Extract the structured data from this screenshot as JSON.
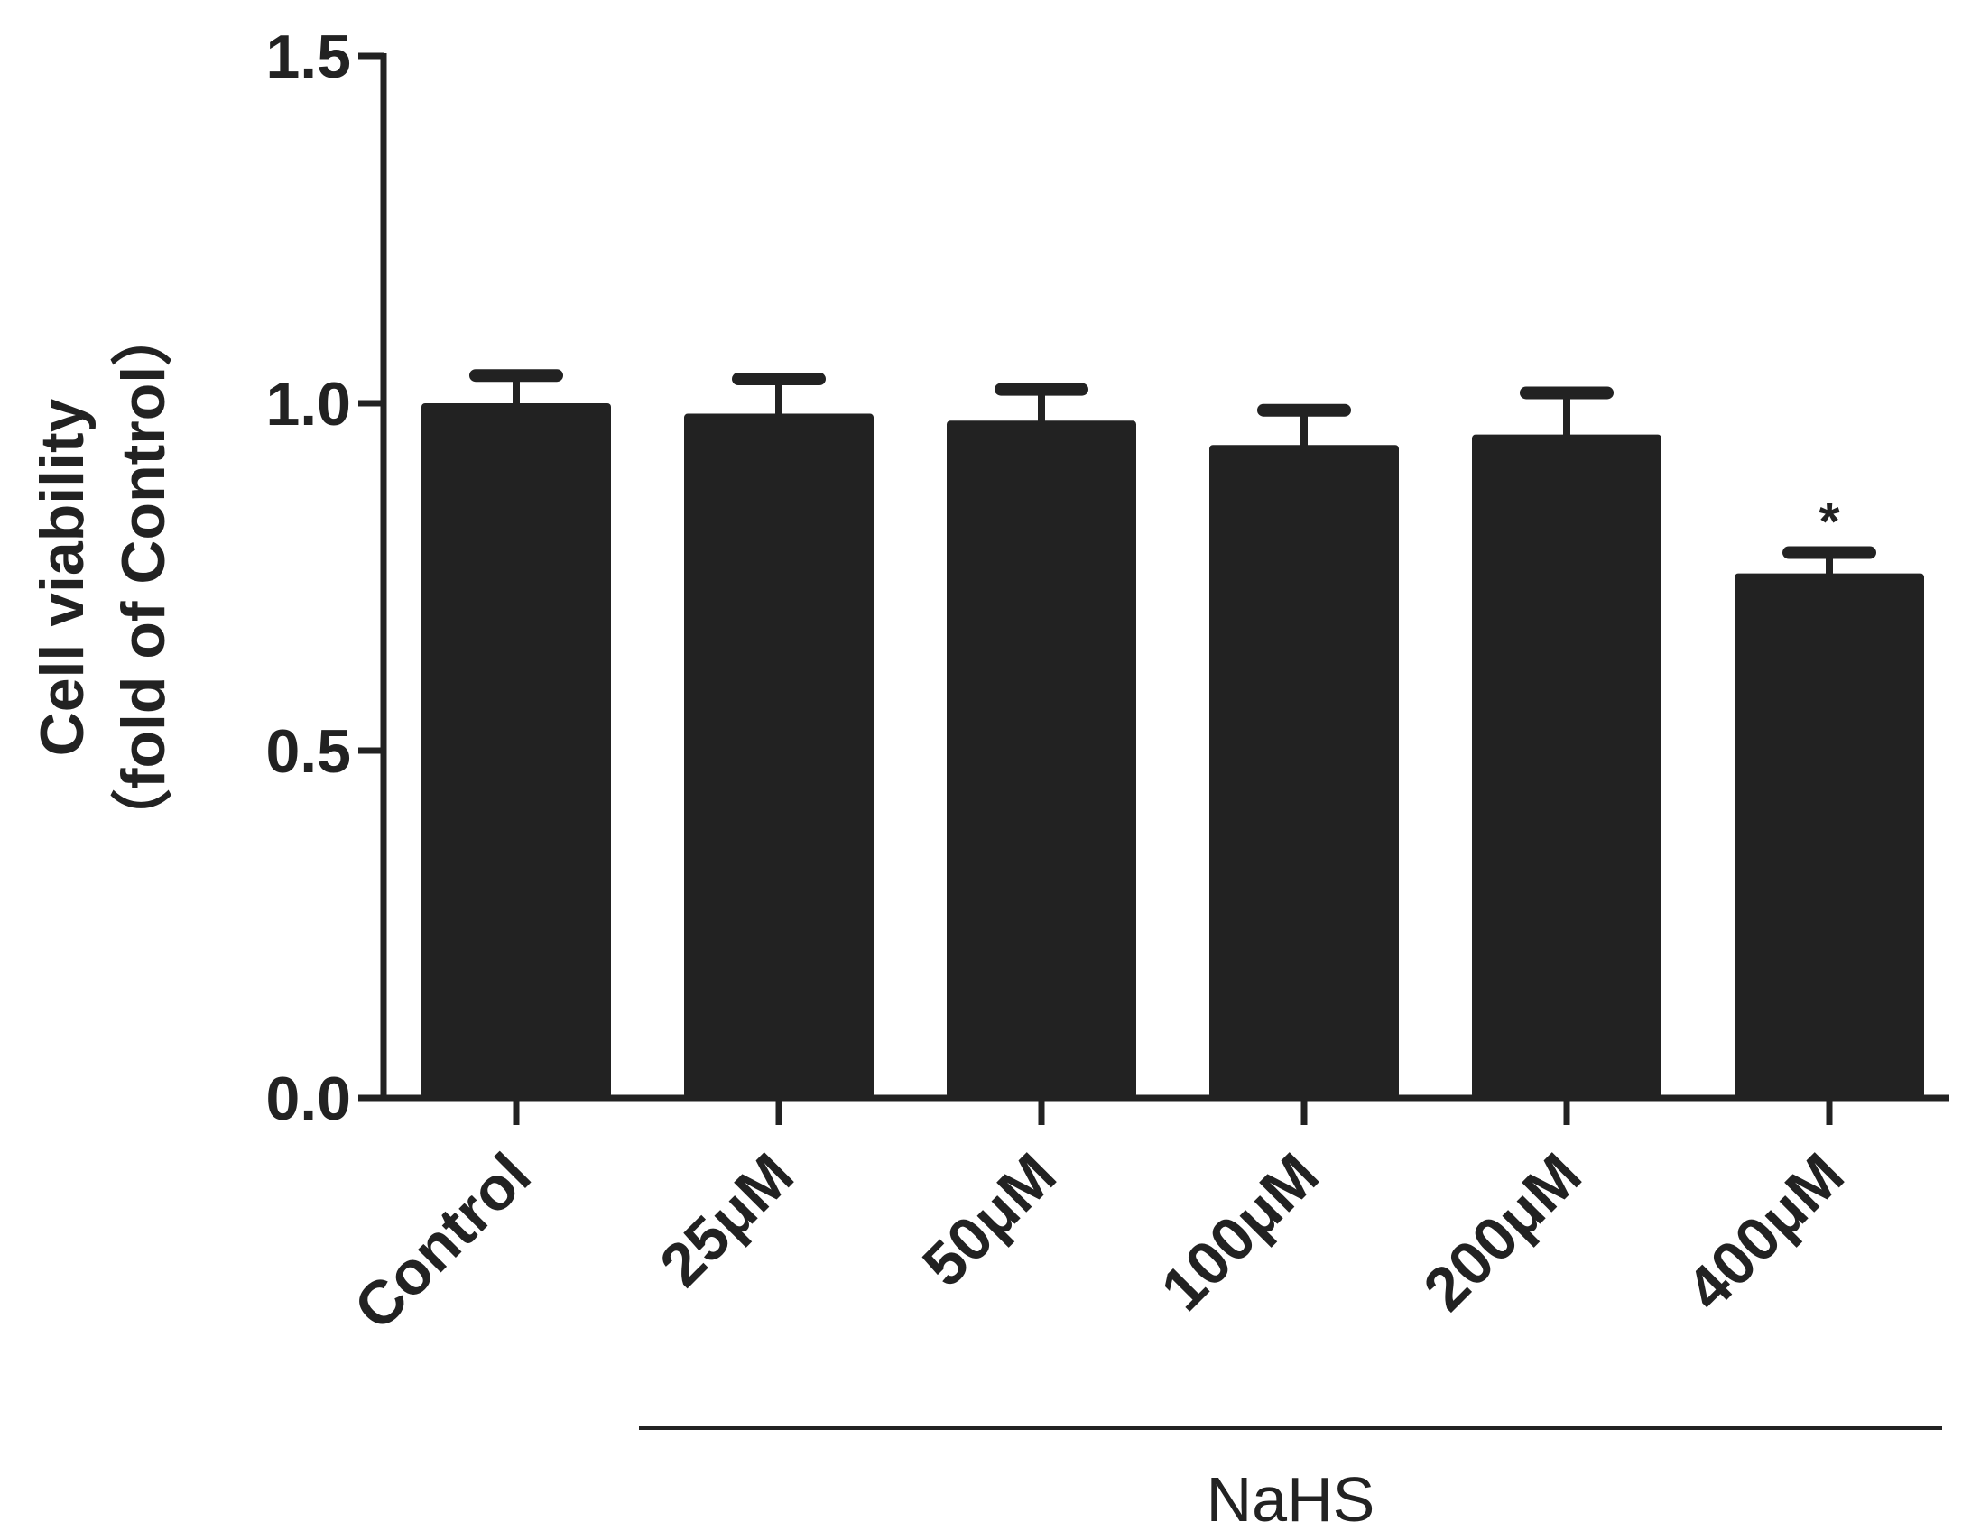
{
  "chart_data": {
    "type": "bar",
    "categories": [
      "Control",
      "25μM",
      "50μM",
      "100μM",
      "200μM",
      "400μM"
    ],
    "values": [
      1.0,
      0.985,
      0.975,
      0.94,
      0.955,
      0.755
    ],
    "errors": [
      0.04,
      0.05,
      0.045,
      0.05,
      0.06,
      0.03
    ],
    "significance": [
      "",
      "",
      "",
      "",
      "",
      "*"
    ],
    "title": "",
    "xlabel": "",
    "ylabel_line1": "Cell viability",
    "ylabel_line2": "（fold of Control）",
    "yticks": [
      "0.0",
      "0.5",
      "1.0",
      "1.5"
    ],
    "ytick_values": [
      0,
      0.5,
      1.0,
      1.5
    ],
    "ylim": [
      0,
      1.5
    ],
    "group_label": "NaHS",
    "group_span": [
      "25μM",
      "400μM"
    ],
    "bar_color": "#222222",
    "grid": false,
    "legend": "none"
  }
}
